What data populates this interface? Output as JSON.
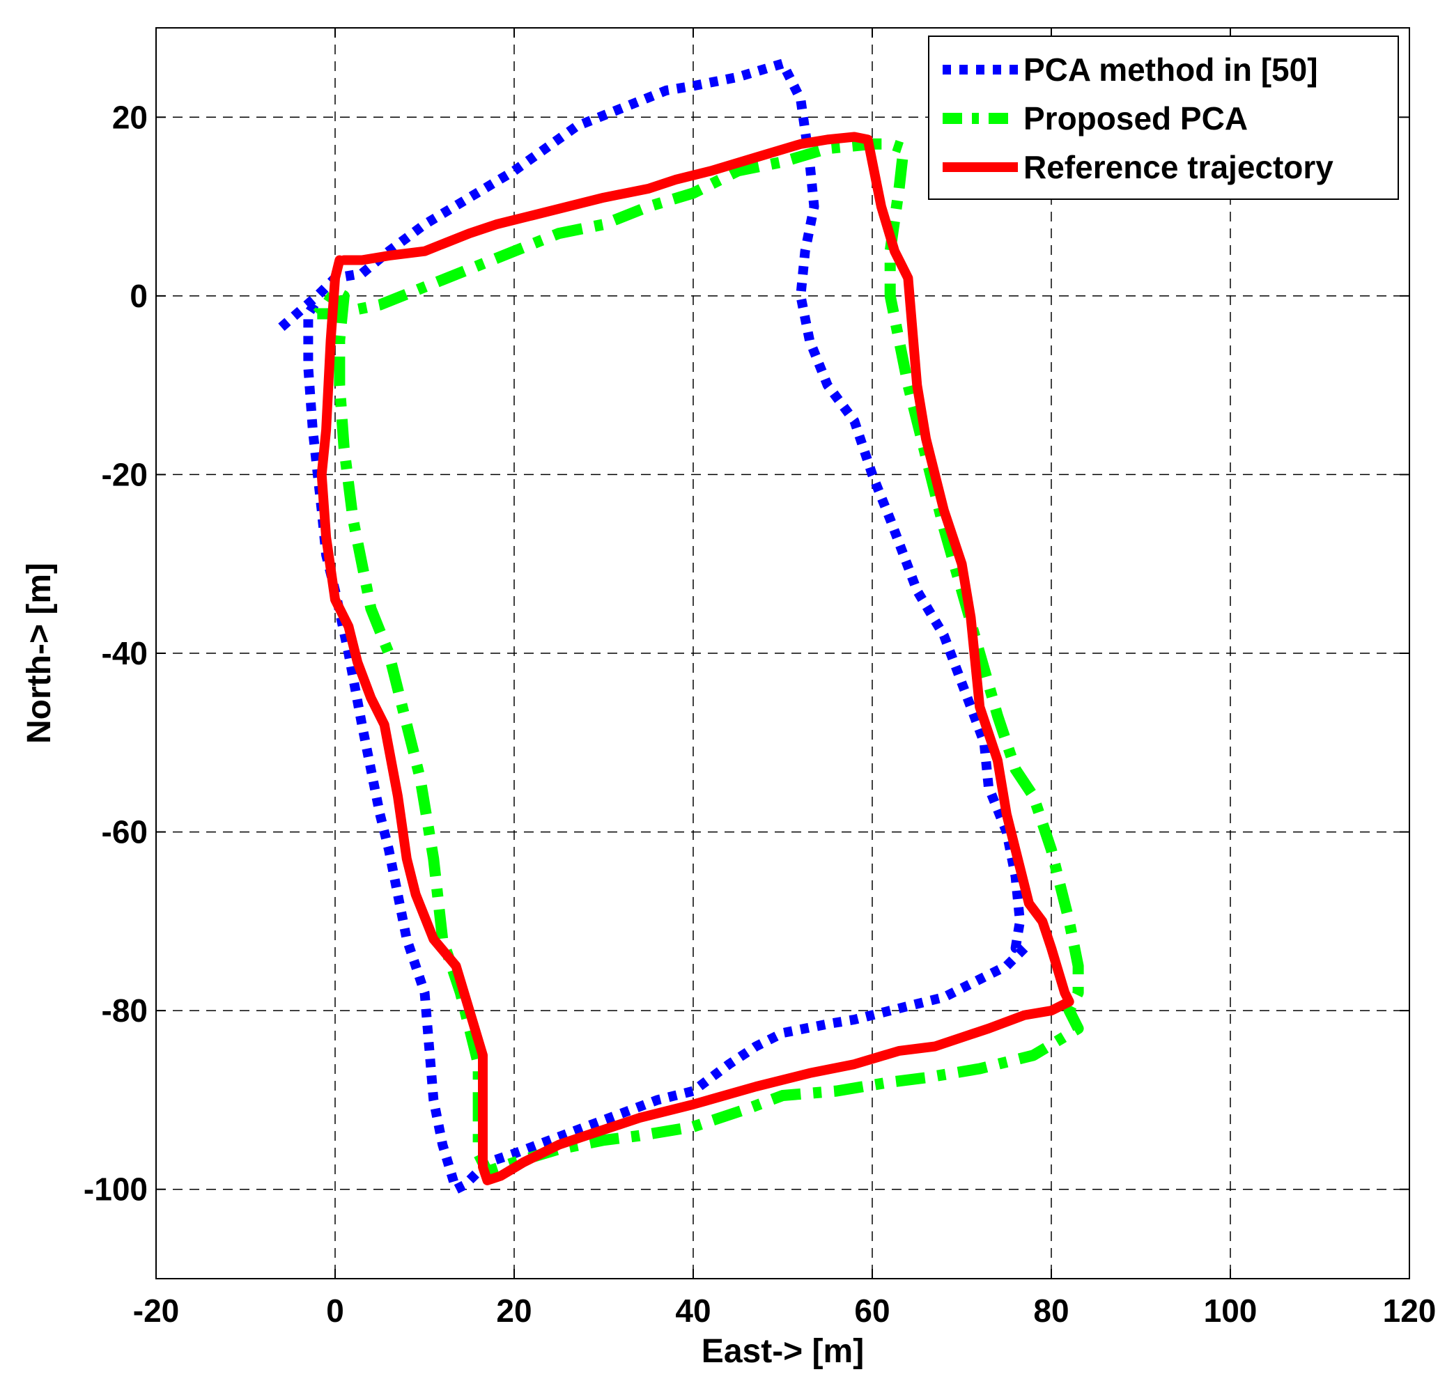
{
  "chart_data": {
    "type": "line",
    "title": "",
    "xlabel": "East-> [m]",
    "ylabel": "North-> [m]",
    "xlim": [
      -20,
      120
    ],
    "ylim": [
      -110,
      30
    ],
    "xticks": [
      -20,
      0,
      20,
      40,
      60,
      80,
      100,
      120
    ],
    "yticks": [
      20,
      0,
      -20,
      -40,
      -60,
      -80,
      -100
    ],
    "grid": true,
    "grid_style": "dashed",
    "legend_position": "top-right",
    "series": [
      {
        "name": "PCA method in [50]",
        "color": "#0000ff",
        "style": "dotted",
        "x": [
          -6,
          -2,
          0,
          3,
          6,
          10,
          15,
          20,
          27,
          32,
          37,
          40,
          45,
          50,
          52,
          53,
          53.5,
          52.5,
          52,
          53,
          55,
          58,
          60,
          62,
          65,
          68,
          71,
          72.5,
          73,
          75,
          76,
          76.5,
          76,
          77,
          75,
          72,
          68,
          62,
          58,
          55,
          50,
          47,
          44,
          40,
          36,
          32,
          28,
          24,
          20,
          17,
          15.5,
          14.5,
          13.5,
          12,
          11,
          10,
          8,
          6,
          5,
          3,
          1.5,
          0,
          -1,
          -1.5,
          -2.5,
          -3,
          -3,
          -3,
          -2
        ],
        "y": [
          -3.5,
          0,
          2,
          2.5,
          5,
          8,
          11,
          14,
          19,
          21,
          23,
          23.5,
          24.5,
          26,
          22,
          15,
          10,
          5,
          0,
          -5,
          -10,
          -14,
          -20,
          -25,
          -33,
          -38,
          -46,
          -50,
          -55,
          -60,
          -65,
          -70,
          -73,
          -73,
          -75,
          -76.5,
          -78.5,
          -80,
          -81,
          -81.5,
          -82.5,
          -84,
          -86,
          -89,
          -90,
          -91.5,
          -93,
          -94.5,
          -96,
          -97,
          -98.5,
          -99.5,
          -100,
          -95,
          -90,
          -78,
          -72,
          -62,
          -58,
          -48,
          -40,
          -33,
          -29,
          -24,
          -15,
          -8,
          -4,
          -2,
          -0.5
        ]
      },
      {
        "name": "Proposed PCA",
        "color": "#00ff00",
        "style": "dashdot",
        "x": [
          -2,
          0,
          5,
          10,
          15,
          20,
          25,
          30,
          35,
          40,
          45,
          50,
          55,
          60,
          62,
          63.5,
          63,
          62,
          62,
          64,
          66,
          68,
          70,
          72,
          74,
          76,
          78,
          80,
          81,
          82,
          83,
          83,
          82,
          83,
          78,
          72,
          66,
          62,
          56,
          50,
          46,
          40,
          34,
          30,
          25,
          20,
          17,
          16,
          16,
          16,
          15,
          14,
          12,
          11,
          9.5,
          8,
          6,
          4,
          2,
          1,
          0.5,
          0.5,
          1,
          0,
          -1,
          -2
        ],
        "y": [
          -2,
          -2,
          -1,
          1,
          3,
          5,
          7,
          8,
          10,
          11.5,
          14,
          15,
          16.5,
          17,
          17,
          16.5,
          12,
          5,
          0,
          -10,
          -18,
          -26,
          -33,
          -40,
          -47,
          -53,
          -56,
          -62,
          -66,
          -70,
          -75,
          -78,
          -80,
          -82,
          -85,
          -86.5,
          -87.5,
          -88,
          -89,
          -89.5,
          -91,
          -93,
          -94,
          -94.5,
          -95.5,
          -97,
          -98,
          -96,
          -90,
          -86,
          -82,
          -78,
          -72,
          -63,
          -54,
          -48,
          -40,
          -35,
          -25,
          -17,
          -10,
          -5,
          0,
          0.5,
          -1,
          -2
        ]
      },
      {
        "name": "Reference trajectory",
        "color": "#ff0000",
        "style": "solid",
        "x": [
          1,
          3,
          6,
          10,
          15,
          18,
          22,
          26,
          30,
          35,
          38,
          42,
          47,
          52,
          55,
          58,
          59.5,
          60,
          61,
          62.5,
          64,
          65,
          66,
          68,
          70,
          71,
          72,
          74,
          75,
          76,
          77.5,
          79,
          80,
          81.5,
          82,
          80,
          77,
          73,
          70,
          67,
          63,
          58,
          53,
          47,
          40,
          34,
          28,
          25,
          23,
          21,
          18.5,
          17,
          16.5,
          16.5,
          16.5,
          16.5,
          15,
          13.5,
          11,
          9,
          8,
          7,
          5.5,
          4,
          2.5,
          1.5,
          0,
          -1,
          -1.5,
          -1,
          -0.5,
          0,
          0.5
        ],
        "y": [
          4,
          4,
          4.5,
          5,
          7,
          8,
          9,
          10,
          11,
          12,
          13,
          14,
          15.5,
          17,
          17.5,
          17.8,
          17.5,
          15,
          10,
          5,
          2,
          -10,
          -16,
          -24,
          -30,
          -36,
          -46,
          -52,
          -58,
          -62,
          -68,
          -70,
          -73,
          -78,
          -79,
          -80,
          -80.5,
          -82,
          -83,
          -84,
          -84.5,
          -86,
          -87,
          -88.5,
          -90.5,
          -92,
          -94,
          -95,
          -96,
          -97,
          -98.5,
          -99,
          -97.5,
          -93,
          -90,
          -85,
          -80,
          -75,
          -72,
          -67,
          -63,
          -56,
          -48,
          -45,
          -41,
          -37,
          -34,
          -27,
          -20,
          -15,
          -5,
          2,
          4
        ]
      }
    ]
  }
}
